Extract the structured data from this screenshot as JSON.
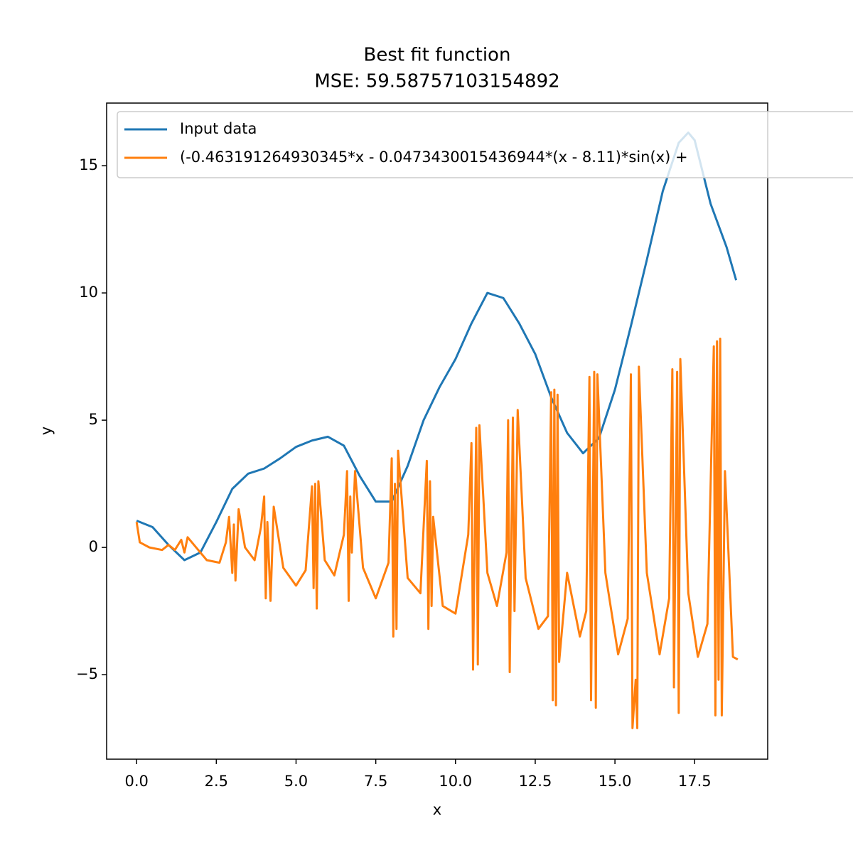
{
  "chart_data": {
    "type": "line",
    "title": [
      "Best fit function",
      "MSE: 59.58757103154892"
    ],
    "x_label": "x",
    "y_label": "y",
    "xlim": [
      -0.94,
      19.79
    ],
    "ylim": [
      -8.32,
      17.46
    ],
    "xticks": [
      {
        "value": 0,
        "label": "0.0"
      },
      {
        "value": 2.5,
        "label": "2.5"
      },
      {
        "value": 5,
        "label": "5.0"
      },
      {
        "value": 7.5,
        "label": "7.5"
      },
      {
        "value": 10,
        "label": "10.0"
      },
      {
        "value": 12.5,
        "label": "12.5"
      },
      {
        "value": 15,
        "label": "15.0"
      },
      {
        "value": 17.5,
        "label": "17.5"
      }
    ],
    "yticks": [
      {
        "value": -5,
        "label": "−5"
      },
      0,
      5,
      10,
      15
    ],
    "legend": "upper left",
    "series": [
      {
        "name": "Input data",
        "color": "#1f77b4",
        "x": [
          0,
          0.5,
          1,
          1.5,
          2,
          2.5,
          3,
          3.5,
          4,
          4.5,
          5,
          5.5,
          6,
          6.5,
          7,
          7.5,
          8,
          8.5,
          9,
          9.5,
          10,
          10.5,
          11,
          11.5,
          12,
          12.5,
          13,
          13.5,
          14,
          14.5,
          15,
          15.5,
          16,
          16.5,
          17,
          17.3,
          17.5,
          18,
          18.5,
          18.8
        ],
        "values": [
          1.05,
          0.8,
          0.1,
          -0.5,
          -0.2,
          1.0,
          2.3,
          2.9,
          3.1,
          3.5,
          3.95,
          4.2,
          4.35,
          4.0,
          2.8,
          1.8,
          1.8,
          3.2,
          5.0,
          6.3,
          7.4,
          8.8,
          10.0,
          9.8,
          8.8,
          7.6,
          5.9,
          4.5,
          3.7,
          4.3,
          6.2,
          8.7,
          11.3,
          14.0,
          15.9,
          16.3,
          16.0,
          13.5,
          11.8,
          10.5
        ]
      },
      {
        "name": "(-0.463191264930345*x - 0.0473430015436944*(x - 8.11)*sin(x) +",
        "color": "#ff7f0e",
        "x": [
          0,
          0.1,
          0.4,
          0.8,
          1.0,
          1.2,
          1.4,
          1.5,
          1.6,
          1.8,
          2.2,
          2.6,
          2.8,
          2.9,
          3.0,
          3.05,
          3.1,
          3.2,
          3.4,
          3.7,
          3.9,
          4.0,
          4.05,
          4.1,
          4.2,
          4.3,
          4.6,
          5.0,
          5.3,
          5.5,
          5.55,
          5.6,
          5.65,
          5.7,
          5.9,
          6.2,
          6.5,
          6.6,
          6.65,
          6.7,
          6.75,
          6.85,
          7.1,
          7.5,
          7.9,
          8.0,
          8.05,
          8.1,
          8.15,
          8.2,
          8.5,
          8.9,
          9.1,
          9.15,
          9.2,
          9.25,
          9.3,
          9.6,
          10.0,
          10.4,
          10.5,
          10.55,
          10.65,
          10.7,
          10.75,
          11.0,
          11.3,
          11.6,
          11.65,
          11.7,
          11.8,
          11.85,
          11.95,
          12.2,
          12.6,
          12.9,
          13.0,
          13.05,
          13.1,
          13.15,
          13.2,
          13.25,
          13.5,
          13.9,
          14.1,
          14.2,
          14.25,
          14.35,
          14.4,
          14.45,
          14.7,
          15.1,
          15.4,
          15.5,
          15.55,
          15.65,
          15.7,
          15.75,
          16.0,
          16.4,
          16.7,
          16.8,
          16.85,
          16.95,
          17.0,
          17.05,
          17.3,
          17.6,
          17.9,
          18.1,
          18.15,
          18.2,
          18.25,
          18.3,
          18.35,
          18.45,
          18.7,
          18.85
        ],
        "values": [
          1.0,
          0.2,
          0.0,
          -0.1,
          0.1,
          -0.1,
          0.3,
          -0.2,
          0.4,
          0.1,
          -0.5,
          -0.6,
          0.2,
          1.2,
          -1.0,
          0.9,
          -1.3,
          1.5,
          0.0,
          -0.5,
          0.8,
          2.0,
          -2.0,
          1.0,
          -2.1,
          1.6,
          -0.8,
          -1.5,
          -0.9,
          2.4,
          -1.6,
          2.5,
          -2.4,
          2.6,
          -0.5,
          -1.1,
          0.5,
          3.0,
          -2.1,
          2.0,
          -0.2,
          3.0,
          -0.8,
          -2.0,
          -0.6,
          3.5,
          -3.5,
          2.5,
          -3.2,
          3.8,
          -1.2,
          -1.8,
          3.4,
          -3.2,
          2.6,
          -2.3,
          1.2,
          -2.3,
          -2.6,
          0.5,
          4.1,
          -4.8,
          4.7,
          -4.6,
          4.8,
          -1.0,
          -2.3,
          -0.2,
          5.0,
          -4.9,
          5.1,
          -2.5,
          5.4,
          -1.2,
          -3.2,
          -2.7,
          6.1,
          -6.0,
          6.2,
          -6.2,
          6.0,
          -4.5,
          -1.0,
          -3.5,
          -2.5,
          6.7,
          -6.0,
          6.9,
          -6.3,
          6.8,
          -1.0,
          -4.2,
          -2.8,
          6.8,
          -7.1,
          -5.2,
          -7.1,
          7.1,
          -1.0,
          -4.2,
          -2.0,
          7.0,
          -5.5,
          6.9,
          -6.5,
          7.4,
          -1.8,
          -4.3,
          -3.0,
          7.9,
          -6.6,
          8.1,
          -5.2,
          8.2,
          -6.6,
          3.0,
          -4.3,
          -4.4
        ]
      }
    ]
  }
}
